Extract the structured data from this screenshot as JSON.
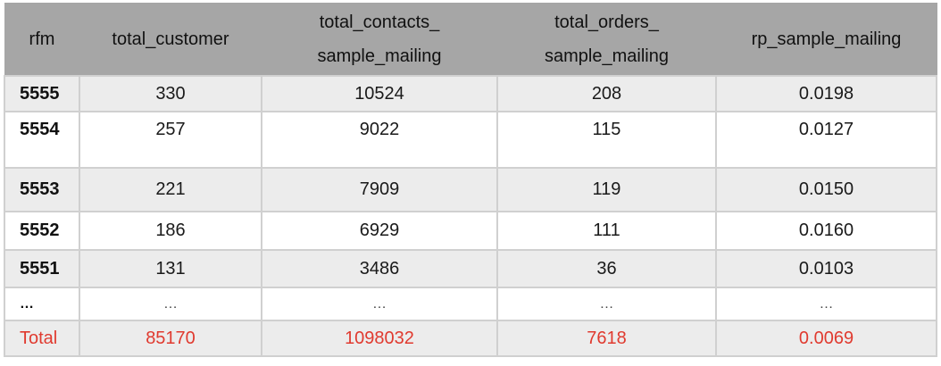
{
  "table": {
    "headers": {
      "rfm": "rfm",
      "total_customer": "total_customer",
      "total_contacts_line1": "total_contacts_",
      "total_contacts_line2": "sample_mailing",
      "total_orders_line1": "total_orders_",
      "total_orders_line2": "sample_mailing",
      "rp_sample_mailing": "rp_sample_mailing"
    },
    "rows": [
      {
        "rfm": "5555",
        "total_customer": "330",
        "total_contacts": "10524",
        "total_orders": "208",
        "rp": "0.0198"
      },
      {
        "rfm": "5554",
        "total_customer": "257",
        "total_contacts": "9022",
        "total_orders": "115",
        "rp": "0.0127"
      },
      {
        "rfm": "5553",
        "total_customer": "221",
        "total_contacts": "7909",
        "total_orders": "119",
        "rp": "0.0150"
      },
      {
        "rfm": "5552",
        "total_customer": "186",
        "total_contacts": "6929",
        "total_orders": "111",
        "rp": "0.0160"
      },
      {
        "rfm": "5551",
        "total_customer": "131",
        "total_contacts": "3486",
        "total_orders": "36",
        "rp": "0.0103"
      },
      {
        "rfm": "…",
        "total_customer": "…",
        "total_contacts": "…",
        "total_orders": "…",
        "rp": "…"
      }
    ],
    "total": {
      "rfm": "Total",
      "total_customer": "85170",
      "total_contacts": "1098032",
      "total_orders": "7618",
      "rp": "0.0069"
    },
    "colors": {
      "header_bg": "#a6a6a6",
      "row_shade": "#ececec",
      "total_text": "#e03a2f"
    }
  }
}
